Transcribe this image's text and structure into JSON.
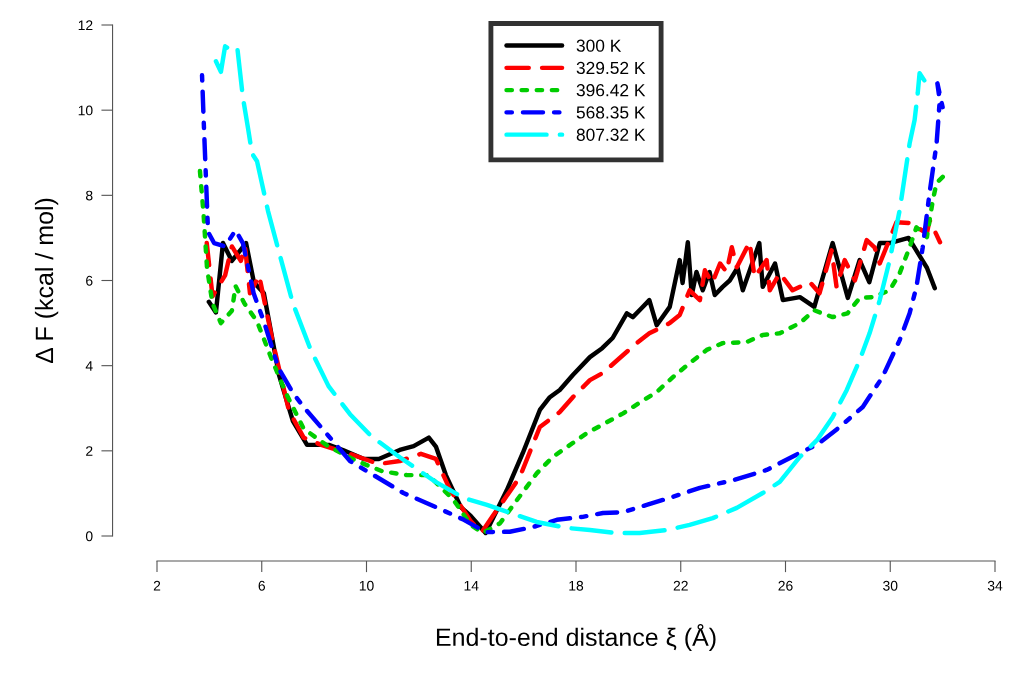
{
  "chart_data": {
    "type": "line",
    "xlabel": "End-to-end distance ξ (Å)",
    "ylabel": "Δ F (kcal / mol)",
    "xlim": [
      2,
      34
    ],
    "ylim": [
      0,
      12
    ],
    "xticks": [
      2,
      6,
      10,
      14,
      18,
      22,
      26,
      30,
      34
    ],
    "yticks": [
      0,
      2,
      4,
      6,
      8,
      10,
      12
    ],
    "grid": false,
    "legend": "top",
    "marker": "none",
    "series": [
      {
        "name": "300 K",
        "color": "#000000",
        "line_style": "solid",
        "x": [
          3.98,
          4.25,
          4.52,
          4.86,
          5.4,
          5.7,
          6.08,
          6.66,
          7.19,
          7.73,
          8.56,
          9.1,
          9.9,
          10.47,
          11.27,
          11.8,
          12.38,
          12.65,
          13.03,
          13.6,
          13.98,
          14.55,
          15.36,
          15.97,
          16.62,
          17.0,
          17.38,
          17.88,
          18.53,
          19.0,
          19.4,
          19.94,
          20.17,
          20.5,
          20.8,
          21.08,
          21.58,
          21.96,
          22.07,
          22.27,
          22.42,
          22.6,
          22.84,
          23.1,
          23.3,
          23.6,
          23.87,
          24.17,
          24.37,
          25.0,
          25.13,
          25.6,
          25.9,
          26.55,
          27.1,
          27.8,
          28.38,
          28.83,
          29.2,
          29.6,
          29.98,
          30.7,
          31.4,
          31.7
        ],
        "values": [
          5.5,
          5.25,
          6.88,
          6.46,
          6.88,
          5.96,
          5.7,
          3.78,
          2.7,
          2.14,
          2.14,
          2.02,
          1.81,
          1.81,
          2.02,
          2.11,
          2.31,
          2.1,
          1.43,
          0.68,
          0.47,
          0.07,
          1.08,
          1.95,
          2.96,
          3.26,
          3.43,
          3.78,
          4.2,
          4.41,
          4.65,
          5.23,
          5.14,
          5.35,
          5.54,
          4.95,
          5.38,
          6.48,
          5.94,
          6.9,
          5.66,
          6.2,
          5.77,
          6.2,
          5.66,
          5.85,
          6.0,
          6.3,
          5.77,
          6.88,
          5.85,
          6.4,
          5.54,
          5.61,
          5.38,
          6.88,
          5.59,
          6.48,
          5.96,
          6.88,
          6.88,
          7.0,
          6.3,
          5.82
        ]
      },
      {
        "name": "329.52 K",
        "color": "#ff0000",
        "line_style": "dashed",
        "x": [
          3.9,
          4.12,
          4.6,
          4.86,
          5.2,
          5.36,
          5.55,
          5.9,
          6.43,
          7.04,
          7.6,
          8.27,
          9.37,
          10.46,
          11.27,
          12.08,
          12.65,
          13.18,
          13.98,
          14.4,
          14.8,
          15.85,
          16.62,
          17.38,
          17.88,
          18.53,
          19.03,
          19.67,
          20.32,
          20.8,
          21.58,
          21.96,
          22.34,
          22.73,
          22.92,
          23.2,
          23.5,
          23.75,
          23.95,
          24.14,
          24.63,
          24.82,
          25.28,
          25.4,
          25.78,
          26.27,
          26.93,
          27.3,
          27.76,
          27.95,
          28.26,
          28.65,
          29.1,
          29.4,
          29.6,
          30.24,
          30.74,
          31.4,
          31.5,
          31.9
        ],
        "values": [
          6.88,
          5.63,
          6.12,
          6.8,
          6.46,
          6.8,
          5.7,
          6.12,
          4.53,
          2.94,
          2.31,
          2.14,
          1.93,
          1.69,
          1.76,
          1.93,
          1.81,
          1.1,
          0.35,
          0.09,
          0.45,
          1.38,
          2.56,
          2.91,
          3.26,
          3.66,
          3.83,
          4.18,
          4.53,
          4.76,
          5.0,
          5.19,
          5.77,
          5.54,
          6.24,
          5.94,
          6.4,
          6.2,
          6.78,
          6.31,
          6.9,
          6.08,
          6.48,
          5.77,
          6.17,
          5.77,
          5.96,
          5.7,
          6.71,
          5.85,
          6.48,
          6.0,
          6.95,
          6.78,
          6.4,
          7.37,
          7.35,
          7.11,
          7.42,
          6.9
        ]
      },
      {
        "name": "396.42 K",
        "color": "#00cd00",
        "line_style": "dotted",
        "x": [
          3.64,
          3.78,
          3.91,
          4.12,
          4.44,
          4.86,
          5.0,
          5.34,
          5.82,
          6.35,
          6.92,
          7.6,
          8.55,
          9.63,
          10.6,
          11.55,
          12.37,
          13.32,
          13.98,
          14.45,
          15.1,
          15.74,
          16.5,
          17.1,
          18.4,
          19.8,
          20.4,
          21.08,
          21.7,
          22.34,
          22.99,
          23.6,
          24.5,
          25.13,
          25.78,
          26.55,
          27.1,
          27.8,
          28.37,
          28.83,
          29.33,
          29.98,
          30.36,
          30.74,
          31.0,
          31.4,
          31.63,
          31.77,
          32.15
        ],
        "values": [
          8.57,
          7.55,
          6.29,
          5.46,
          5.0,
          5.29,
          5.87,
          5.46,
          5.04,
          4.2,
          3.36,
          2.52,
          2.1,
          1.76,
          1.52,
          1.43,
          1.43,
          0.85,
          0.26,
          0.07,
          0.3,
          0.84,
          1.47,
          1.85,
          2.41,
          2.88,
          3.12,
          3.38,
          3.73,
          4.06,
          4.37,
          4.53,
          4.55,
          4.72,
          4.76,
          5.0,
          5.3,
          5.14,
          5.23,
          5.59,
          5.61,
          5.77,
          6.17,
          6.78,
          7.25,
          7.02,
          7.9,
          8.29,
          8.52
        ]
      },
      {
        "name": "568.35 K",
        "color": "#0000ff",
        "line_style": "dashdot",
        "x": [
          3.72,
          3.78,
          3.87,
          3.95,
          4.18,
          4.6,
          5.0,
          5.28,
          5.69,
          6.08,
          6.64,
          7.19,
          7.6,
          8.55,
          9.37,
          10.6,
          11.41,
          12.64,
          13.72,
          14.55,
          15.47,
          16.35,
          17.27,
          18.26,
          19.03,
          19.8,
          20.7,
          21.7,
          22.73,
          24.0,
          25.28,
          26.54,
          27.2,
          28.07,
          28.95,
          29.7,
          30.36,
          30.74,
          31.0,
          31.24,
          31.5,
          31.77,
          31.89,
          31.8,
          32.0
        ],
        "values": [
          10.82,
          9.8,
          8.39,
          7.14,
          6.88,
          6.8,
          7.18,
          6.88,
          5.7,
          5.04,
          3.94,
          3.36,
          3.03,
          2.35,
          1.76,
          1.31,
          1.01,
          0.68,
          0.38,
          0.09,
          0.1,
          0.21,
          0.38,
          0.45,
          0.54,
          0.56,
          0.73,
          0.92,
          1.13,
          1.31,
          1.55,
          1.95,
          2.14,
          2.56,
          3.03,
          3.73,
          4.6,
          5.23,
          5.85,
          6.78,
          8.05,
          9.22,
          10.23,
          10.63,
          10.07
        ]
      },
      {
        "name": "807.32 K",
        "color": "#00ffff",
        "line_style": "longdash",
        "x": [
          4.25,
          4.44,
          4.6,
          4.86,
          5.07,
          5.28,
          5.48,
          5.63,
          5.82,
          6.24,
          6.64,
          7.19,
          7.87,
          8.55,
          9.37,
          10.17,
          11.27,
          12.64,
          13.72,
          14.6,
          15.74,
          16.5,
          17.65,
          18.53,
          19.56,
          20.43,
          21.47,
          22.34,
          23.22,
          24.14,
          25.13,
          25.78,
          26.54,
          27.2,
          27.8,
          28.34,
          28.83,
          29.21,
          29.6,
          29.98,
          30.36,
          30.74,
          30.93,
          31.05,
          31.12,
          31.3
        ],
        "values": [
          11.15,
          10.9,
          11.5,
          11.4,
          11.45,
          10.3,
          9.56,
          8.98,
          8.8,
          7.63,
          6.71,
          5.46,
          4.37,
          3.52,
          2.86,
          2.35,
          1.85,
          1.27,
          0.89,
          0.73,
          0.49,
          0.33,
          0.19,
          0.14,
          0.07,
          0.07,
          0.14,
          0.26,
          0.42,
          0.66,
          1.01,
          1.27,
          1.85,
          2.25,
          2.79,
          3.43,
          4.13,
          4.76,
          5.54,
          6.48,
          7.65,
          9.22,
          9.77,
          10.4,
          10.87,
          10.7
        ]
      }
    ]
  }
}
